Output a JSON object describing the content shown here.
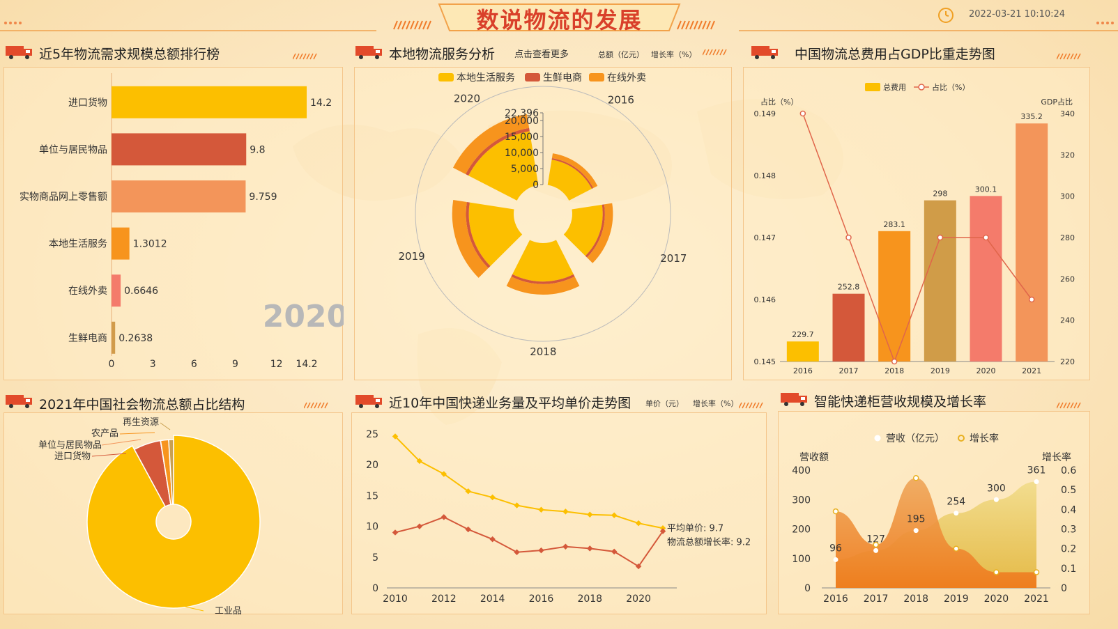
{
  "header": {
    "title": "数说物流的发展",
    "datetime": "2022-03-21 10:10:24"
  },
  "panels": {
    "p1": {
      "title": "近5年物流需求规模总额排行榜",
      "year_label": "2020"
    },
    "p2": {
      "title": "本地物流服务分析",
      "link": "点击查看更多",
      "unit1": "总额（亿元）",
      "unit2": "增长率（%）"
    },
    "p3": {
      "title": "中国物流总费用占GDP比重走势图"
    },
    "p4": {
      "title": "2021年中国社会物流总额占比结构"
    },
    "p5": {
      "title": "近10年中国快递业务量及平均单价走势图",
      "unit1": "单价（元）",
      "unit2": "增长率（%）"
    },
    "p6": {
      "title": "智能快递柜营收规模及增长率"
    }
  },
  "colors": {
    "accent": "#d9402a",
    "yellow": "#fcbf00",
    "red_brown": "#d4583a",
    "salmon": "#f3955a",
    "orange": "#f7941d",
    "pink": "#f47b6b",
    "khaki": "#c9a050",
    "gold": "#d19b4a"
  },
  "chart_data": [
    {
      "id": "rank",
      "type": "bar",
      "orientation": "horizontal",
      "categories": [
        "进口货物",
        "单位与居民物品",
        "实物商品网上零售额",
        "本地生活服务",
        "在线外卖",
        "生鲜电商"
      ],
      "values": [
        14.2,
        9.8,
        9.759,
        1.3012,
        0.6646,
        0.2638
      ],
      "value_labels": [
        "14.2",
        "9.8",
        "9.759",
        "1.3012",
        "0.6646",
        "0.2638"
      ],
      "colors": [
        "#fcbf00",
        "#d4583a",
        "#f3955a",
        "#f7941d",
        "#f47b6b",
        "#d19b4a"
      ],
      "xticks": [
        "0",
        "3",
        "6",
        "9",
        "12",
        "14.2"
      ],
      "xlim": [
        0,
        14.2
      ]
    },
    {
      "id": "local",
      "type": "bar",
      "polar": true,
      "categories": [
        "2016",
        "2017",
        "2018",
        "2019",
        "2020"
      ],
      "legend": [
        "本地生活服务",
        "生鲜电商",
        "在线外卖"
      ],
      "legend_colors": [
        "#fcbf00",
        "#d4583a",
        "#f7941d"
      ],
      "series": [
        {
          "name": "本地生活服务",
          "values": [
            8000,
            9500,
            12000,
            14000,
            17000
          ]
        },
        {
          "name": "生鲜电商",
          "values": [
            500,
            700,
            800,
            900,
            1000
          ]
        },
        {
          "name": "在线外卖",
          "values": [
            1500,
            2500,
            3300,
            4300,
            4396
          ]
        }
      ],
      "rticks": [
        "0",
        "5,000",
        "10,000",
        "15,000",
        "20,000",
        "22,396"
      ],
      "rlim": [
        0,
        22396
      ]
    },
    {
      "id": "gdp",
      "type": "bar",
      "categories": [
        "2016",
        "2017",
        "2018",
        "2019",
        "2020",
        "2021"
      ],
      "series": [
        {
          "name": "总费用",
          "values": [
            229.7,
            252.8,
            283.1,
            298,
            300.1,
            335.2
          ],
          "labels": [
            "229.7",
            "252.8",
            "283.1",
            "298",
            "300.1",
            "335.2"
          ]
        },
        {
          "name": "占比（%）",
          "type": "line",
          "values": [
            0.149,
            0.147,
            0.145,
            0.147,
            0.147,
            0.146
          ]
        }
      ],
      "bar_colors": [
        "#fcbf00",
        "#d4583a",
        "#f7941d",
        "#d09c48",
        "#f47b6b",
        "#f3955a"
      ],
      "left_axis_label": "占比（%）",
      "right_axis_label": "GDP占比",
      "left_ticks": [
        "0.145",
        "0.146",
        "0.147",
        "0.148",
        "0.149"
      ],
      "left_lim": [
        0.145,
        0.149
      ],
      "right_ticks": [
        "220",
        "240",
        "260",
        "280",
        "300",
        "320",
        "340"
      ],
      "right_lim": [
        220,
        340
      ]
    },
    {
      "id": "structure",
      "type": "pie",
      "donut": true,
      "labels": [
        "工业品",
        "进口货物",
        "单位与居民物品",
        "农产品",
        "再生资源"
      ],
      "values": [
        299.6,
        17.4,
        0.1,
        5.1,
        3.1
      ],
      "colors": [
        "#fcbf00",
        "#d4583a",
        "#f3955a",
        "#f7941d",
        "#c9a050"
      ]
    },
    {
      "id": "express",
      "type": "line",
      "x": [
        "2010",
        "2011",
        "2012",
        "2013",
        "2014",
        "2015",
        "2016",
        "2017",
        "2018",
        "2019",
        "2020",
        "2021"
      ],
      "xticks": [
        "2010",
        "2012",
        "2014",
        "2016",
        "2018",
        "2020"
      ],
      "series": [
        {
          "name": "平均单价",
          "values": [
            24.6,
            20.6,
            18.5,
            15.7,
            14.7,
            13.4,
            12.7,
            12.4,
            11.9,
            11.8,
            10.5,
            9.7
          ],
          "color": "#fcbf00"
        },
        {
          "name": "物流总额增长率",
          "values": [
            9.0,
            10.0,
            11.5,
            9.5,
            7.9,
            5.8,
            6.1,
            6.7,
            6.4,
            5.9,
            3.5,
            9.2
          ],
          "color": "#d4583a"
        }
      ],
      "end_labels": [
        "平均单价: 9.7",
        "物流总额增长率: 9.2"
      ],
      "yticks": [
        "0",
        "5",
        "10",
        "15",
        "20",
        "25"
      ],
      "ylim": [
        0,
        25
      ]
    },
    {
      "id": "locker",
      "type": "area",
      "categories": [
        "2016",
        "2017",
        "2018",
        "2019",
        "2020",
        "2021"
      ],
      "legend": [
        "营收（亿元）",
        "增长率"
      ],
      "series": [
        {
          "name": "营收（亿元）",
          "values": [
            96,
            127,
            195,
            254,
            300,
            361
          ],
          "labels": [
            "96",
            "127",
            "195",
            "254",
            "300",
            "361"
          ]
        },
        {
          "name": "增长率",
          "values": [
            0.39,
            0.22,
            0.56,
            0.2,
            0.08,
            0.08
          ]
        }
      ],
      "left_axis_label": "营收额",
      "right_axis_label": "增长率",
      "left_ticks": [
        "0",
        "100",
        "200",
        "300",
        "400"
      ],
      "left_lim": [
        0,
        400
      ],
      "right_ticks": [
        "0",
        "0.1",
        "0.2",
        "0.3",
        "0.4",
        "0.5",
        "0.6"
      ],
      "right_lim": [
        0,
        0.6
      ]
    }
  ]
}
